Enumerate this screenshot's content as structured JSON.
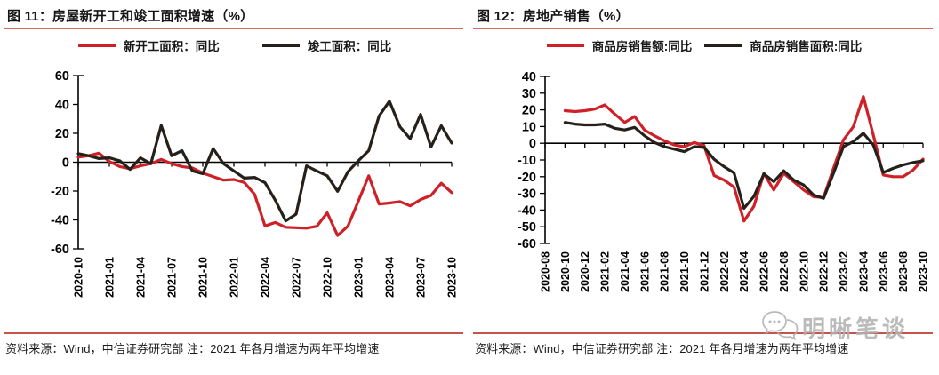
{
  "watermark": {
    "text": "明晰笔谈",
    "icon": "wechat-chat-bubbles-icon"
  },
  "colors": {
    "title_rule": "#d66a63",
    "footer_rule": "#c8534c",
    "axis": "#000000",
    "watermark_gray": "#b2b2b2",
    "series_red": "#cf2027",
    "series_black": "#26201b"
  },
  "chart_data": [
    {
      "type": "line",
      "title": "图 11：房屋新开工和竣工面积增速（%）",
      "source_note": "资料来源：Wind，中信证券研究部 注：2021 年各月增速为两年平均增速",
      "grid": false,
      "legend_position": "top",
      "ylim": [
        -60,
        60
      ],
      "y_ticks": [
        60,
        40,
        20,
        0,
        -20,
        -40,
        -60
      ],
      "categories": [
        "2020-10",
        "2020-11",
        "2020-12",
        "2021-01",
        "2021-02",
        "2021-03",
        "2021-04",
        "2021-05",
        "2021-06",
        "2021-07",
        "2021-08",
        "2021-09",
        "2021-10",
        "2021-11",
        "2021-12",
        "2022-01",
        "2022-02",
        "2022-03",
        "2022-04",
        "2022-05",
        "2022-06",
        "2022-07",
        "2022-08",
        "2022-09",
        "2022-10",
        "2022-11",
        "2022-12",
        "2023-01",
        "2023-02",
        "2023-03",
        "2023-04",
        "2023-05",
        "2023-06",
        "2023-07",
        "2023-08",
        "2023-09",
        "2023-10"
      ],
      "x_tick_labels": [
        "2020-10",
        "2021-01",
        "2021-04",
        "2021-07",
        "2021-10",
        "2022-01",
        "2022-04",
        "2022-07",
        "2022-10",
        "2023-01",
        "2023-04",
        "2023-07",
        "2023-10"
      ],
      "series": [
        {
          "name": "新开工面积：同比",
          "color": "#cf2027",
          "values": [
            3.5,
            4.5,
            6.3,
            0.5,
            -3,
            -4.5,
            -2.5,
            -1,
            2,
            -1,
            -3,
            -4,
            -7.5,
            -10,
            -12.4,
            -12,
            -14,
            -22.3,
            -44.2,
            -41.8,
            -45.1,
            -45.4,
            -45.7,
            -44.4,
            -35.1,
            -50.8,
            -44.3,
            -27,
            -9.4,
            -29,
            -28.3,
            -27.3,
            -30.3,
            -25.9,
            -23.1,
            -14.6,
            -21.1
          ]
        },
        {
          "name": "竣工面积：同比",
          "color": "#26201b",
          "values": [
            6,
            4.5,
            2.5,
            3,
            1,
            -5,
            3,
            -1,
            25.5,
            4.5,
            8,
            -6,
            -8,
            9.5,
            -1,
            -6,
            -11,
            -10.5,
            -14.2,
            -26.5,
            -40.7,
            -36,
            -2.5,
            -6.1,
            -9.4,
            -20.2,
            -6.6,
            1,
            8,
            32,
            42.3,
            24.6,
            16.3,
            33.1,
            10.6,
            25.3,
            13.3
          ]
        }
      ]
    },
    {
      "type": "line",
      "title": "图 12：房地产销售（%）",
      "source_note": "资料来源：Wind，中信证券研究部 注：2021 年各月增速为两年平均增速",
      "grid": false,
      "legend_position": "top",
      "ylim": [
        -60,
        40
      ],
      "y_ticks": [
        40,
        30,
        20,
        10,
        0,
        -10,
        -20,
        -30,
        -40,
        -50,
        -60
      ],
      "categories": [
        "2020-08",
        "2020-09",
        "2020-10",
        "2020-11",
        "2020-12",
        "2021-01",
        "2021-02",
        "2021-03",
        "2021-04",
        "2021-05",
        "2021-06",
        "2021-07",
        "2021-08",
        "2021-09",
        "2021-10",
        "2021-11",
        "2021-12",
        "2022-01",
        "2022-02",
        "2022-03",
        "2022-04",
        "2022-05",
        "2022-06",
        "2022-07",
        "2022-08",
        "2022-09",
        "2022-10",
        "2022-11",
        "2022-12",
        "2023-01",
        "2023-02",
        "2023-03",
        "2023-04",
        "2023-05",
        "2023-06",
        "2023-07",
        "2023-08",
        "2023-09",
        "2023-10"
      ],
      "x_tick_labels": [
        "2020-08",
        "2020-10",
        "2020-12",
        "2021-02",
        "2021-04",
        "2021-06",
        "2021-08",
        "2021-10",
        "2021-12",
        "2022-02",
        "2022-04",
        "2022-06",
        "2022-08",
        "2022-10",
        "2022-12",
        "2023-02",
        "2023-04",
        "2023-06",
        "2023-08",
        "2023-10"
      ],
      "series": [
        {
          "name": "商品房销售额:同比",
          "color": "#cf2027",
          "values": [
            null,
            null,
            19.5,
            19,
            19.5,
            20.5,
            23,
            17.5,
            12.5,
            16,
            8,
            4.5,
            1.5,
            -1,
            -2,
            0.5,
            -1.5,
            -19.3,
            -22,
            -26.2,
            -46.6,
            -37.7,
            -18,
            -28,
            -18,
            -23,
            -28,
            -32,
            -32.5,
            -15,
            2,
            10,
            28,
            5,
            -19,
            -20,
            -20,
            -16,
            -9.5
          ]
        },
        {
          "name": "商品房销售面积:同比",
          "color": "#26201b",
          "values": [
            null,
            null,
            12.5,
            11.5,
            11,
            11,
            11.5,
            9,
            8,
            9.5,
            4.5,
            0.5,
            -2,
            -3.5,
            -5,
            -2,
            -2.5,
            -9.6,
            -14,
            -17.7,
            -39,
            -31.8,
            -18.3,
            -23,
            -16.5,
            -22,
            -25,
            -31,
            -33,
            -18,
            -2,
            1,
            6,
            -1,
            -17.5,
            -15,
            -13,
            -11.5,
            -10.5
          ]
        }
      ]
    }
  ]
}
